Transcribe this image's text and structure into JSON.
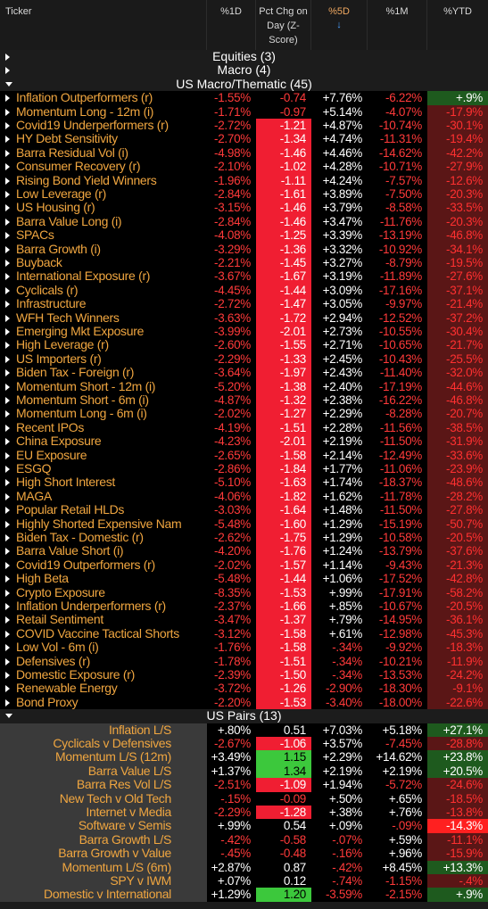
{
  "header": {
    "ticker": "Ticker",
    "d1": "%1D",
    "pct_chg": "Pct Chg on Day (Z-Score)",
    "d5": "%5D",
    "m1": "%1M",
    "ytd": "%YTD",
    "sort_arrow": "↓"
  },
  "groups": {
    "equities": "Equities (3)",
    "macro": "Macro (4)",
    "us_macro": "US Macro/Thematic (45)",
    "us_pairs": "US Pairs (13)"
  },
  "rows": [
    [
      "Inflation Outperformers (r)",
      "-1.55%",
      "-0.74",
      "+7.76%",
      "-6.22%",
      "+.9%"
    ],
    [
      "Momentum Long - 12m (i)",
      "-1.71%",
      "-0.97",
      "+5.14%",
      "-4.07%",
      "-17.9%"
    ],
    [
      "Covid19 Underperformers (r)",
      "-2.72%",
      "-1.21",
      "+4.87%",
      "-10.74%",
      "-30.1%"
    ],
    [
      "HY Debt Sensitivity",
      "-2.70%",
      "-1.34",
      "+4.74%",
      "-11.31%",
      "-19.4%"
    ],
    [
      "Barra Residual Vol (i)",
      "-4.98%",
      "-1.46",
      "+4.46%",
      "-14.62%",
      "-42.2%"
    ],
    [
      "Consumer Recovery (r)",
      "-2.10%",
      "-1.02",
      "+4.28%",
      "-10.71%",
      "-27.9%"
    ],
    [
      "Rising Bond Yield Winners",
      "-1.96%",
      "-1.11",
      "+4.24%",
      "-7.57%",
      "-12.6%"
    ],
    [
      "Low Leverage (r)",
      "-2.84%",
      "-1.61",
      "+3.89%",
      "-7.50%",
      "-20.3%"
    ],
    [
      "US Housing (r)",
      "-3.15%",
      "-1.46",
      "+3.79%",
      "-8.58%",
      "-33.5%"
    ],
    [
      "Barra Value Long (i)",
      "-2.84%",
      "-1.46",
      "+3.47%",
      "-11.76%",
      "-20.3%"
    ],
    [
      "SPACs",
      "-4.08%",
      "-1.25",
      "+3.39%",
      "-13.19%",
      "-46.8%"
    ],
    [
      "Barra Growth (i)",
      "-3.29%",
      "-1.36",
      "+3.32%",
      "-10.92%",
      "-34.1%"
    ],
    [
      "Buyback",
      "-2.21%",
      "-1.45",
      "+3.27%",
      "-8.79%",
      "-19.5%"
    ],
    [
      "International Exposure (r)",
      "-3.67%",
      "-1.67",
      "+3.19%",
      "-11.89%",
      "-27.6%"
    ],
    [
      "Cyclicals (r)",
      "-4.45%",
      "-1.44",
      "+3.09%",
      "-17.16%",
      "-37.1%"
    ],
    [
      "Infrastructure",
      "-2.72%",
      "-1.47",
      "+3.05%",
      "-9.97%",
      "-21.4%"
    ],
    [
      "WFH Tech Winners",
      "-3.63%",
      "-1.72",
      "+2.94%",
      "-12.52%",
      "-37.2%"
    ],
    [
      "Emerging Mkt Exposure",
      "-3.99%",
      "-2.01",
      "+2.73%",
      "-10.55%",
      "-30.4%"
    ],
    [
      "High Leverage (r)",
      "-2.60%",
      "-1.55",
      "+2.71%",
      "-10.65%",
      "-21.7%"
    ],
    [
      "US Importers (r)",
      "-2.29%",
      "-1.33",
      "+2.45%",
      "-10.43%",
      "-25.5%"
    ],
    [
      "Biden Tax - Foreign (r)",
      "-3.64%",
      "-1.97",
      "+2.43%",
      "-11.40%",
      "-32.0%"
    ],
    [
      "Momentum Short - 12m (i)",
      "-5.20%",
      "-1.38",
      "+2.40%",
      "-17.19%",
      "-44.6%"
    ],
    [
      "Momentum Short - 6m (i)",
      "-4.87%",
      "-1.32",
      "+2.38%",
      "-16.22%",
      "-46.8%"
    ],
    [
      "Momentum Long - 6m (i)",
      "-2.02%",
      "-1.27",
      "+2.29%",
      "-8.28%",
      "-20.7%"
    ],
    [
      "Recent IPOs",
      "-4.19%",
      "-1.51",
      "+2.28%",
      "-11.56%",
      "-38.5%"
    ],
    [
      "China Exposure",
      "-4.23%",
      "-2.01",
      "+2.19%",
      "-11.50%",
      "-31.9%"
    ],
    [
      "EU Exposure",
      "-2.65%",
      "-1.58",
      "+2.14%",
      "-12.49%",
      "-33.6%"
    ],
    [
      "ESGQ",
      "-2.86%",
      "-1.84",
      "+1.77%",
      "-11.06%",
      "-23.9%"
    ],
    [
      "High Short Interest",
      "-5.10%",
      "-1.63",
      "+1.74%",
      "-18.37%",
      "-48.6%"
    ],
    [
      "MAGA",
      "-4.06%",
      "-1.82",
      "+1.62%",
      "-11.78%",
      "-28.2%"
    ],
    [
      "Popular Retail HLDs",
      "-3.03%",
      "-1.64",
      "+1.48%",
      "-11.50%",
      "-27.8%"
    ],
    [
      "Highly Shorted Expensive Nam",
      "-5.48%",
      "-1.60",
      "+1.29%",
      "-15.19%",
      "-50.7%"
    ],
    [
      "Biden Tax - Domestic (r)",
      "-2.62%",
      "-1.75",
      "+1.29%",
      "-10.58%",
      "-20.5%"
    ],
    [
      "Barra Value Short (i)",
      "-4.20%",
      "-1.76",
      "+1.24%",
      "-13.79%",
      "-37.6%"
    ],
    [
      "Covid19 Outperformers (r)",
      "-2.02%",
      "-1.57",
      "+1.14%",
      "-9.43%",
      "-21.3%"
    ],
    [
      "High Beta",
      "-5.48%",
      "-1.44",
      "+1.06%",
      "-17.52%",
      "-42.8%"
    ],
    [
      "Crypto Exposure",
      "-8.35%",
      "-1.53",
      "+.99%",
      "-17.91%",
      "-58.2%"
    ],
    [
      "Inflation Underperformers (r)",
      "-2.37%",
      "-1.66",
      "+.85%",
      "-10.67%",
      "-20.5%"
    ],
    [
      "Retail Sentiment",
      "-3.47%",
      "-1.37",
      "+.79%",
      "-14.95%",
      "-36.1%"
    ],
    [
      "COVID Vaccine Tactical Shorts",
      "-3.12%",
      "-1.58",
      "+.61%",
      "-12.98%",
      "-45.3%"
    ],
    [
      "Low Vol - 6m (i)",
      "-1.76%",
      "-1.58",
      "-.34%",
      "-9.92%",
      "-18.3%"
    ],
    [
      "Defensives (r)",
      "-1.78%",
      "-1.51",
      "-.34%",
      "-10.21%",
      "-11.9%"
    ],
    [
      "Domestic Exposure (r)",
      "-2.39%",
      "-1.50",
      "-.34%",
      "-13.53%",
      "-24.2%"
    ],
    [
      "Renewable Energy",
      "-3.72%",
      "-1.26",
      "-2.90%",
      "-18.30%",
      "-9.1%"
    ],
    [
      "Bond Proxy",
      "-2.20%",
      "-1.53",
      "-3.40%",
      "-18.00%",
      "-22.6%"
    ]
  ],
  "pairs": [
    [
      "Inflation L/S",
      "+.80%",
      "0.51",
      "+7.03%",
      "+5.18%",
      "+27.1%"
    ],
    [
      "Cyclicals v Defensives",
      "-2.67%",
      "-1.06",
      "+3.57%",
      "-7.45%",
      "-28.8%"
    ],
    [
      "Momentum L/S (12m)",
      "+3.49%",
      "1.15",
      "+2.29%",
      "+14.62%",
      "+23.8%"
    ],
    [
      "Barra Value L/S",
      "+1.37%",
      "1.34",
      "+2.19%",
      "+2.19%",
      "+20.5%"
    ],
    [
      "Barra Res Vol L/S",
      "-2.51%",
      "-1.09",
      "+1.94%",
      "-5.72%",
      "-24.6%"
    ],
    [
      "New Tech v Old Tech",
      "-.15%",
      "-0.09",
      "+.50%",
      "+.65%",
      "-18.5%"
    ],
    [
      "Internet v Media",
      "-2.29%",
      "-1.28",
      "+.38%",
      "+.76%",
      "-13.8%"
    ],
    [
      "Software v Semis",
      "+.99%",
      "0.54",
      "+.09%",
      "-.09%",
      "-14.3%"
    ],
    [
      "Barra Growth L/S",
      "-.42%",
      "-0.58",
      "-.07%",
      "+.59%",
      "-11.1%"
    ],
    [
      "Barra Growth v Value",
      "-.45%",
      "-0.48",
      "-.16%",
      "+.96%",
      "-15.9%"
    ],
    [
      "Momentum L/S (6m)",
      "+2.87%",
      "0.87",
      "-.42%",
      "+8.45%",
      "+13.3%"
    ],
    [
      "SPY v IWM",
      "+.07%",
      "0.12",
      "-.74%",
      "-1.15%",
      "-.4%"
    ],
    [
      "Domestic v International",
      "+1.29%",
      "1.20",
      "-3.59%",
      "-2.15%",
      "+.9%"
    ]
  ]
}
